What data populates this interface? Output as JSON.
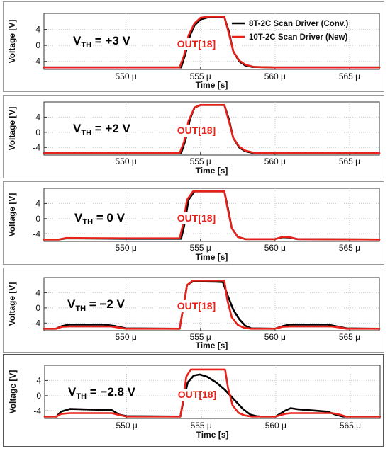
{
  "chart_data": [
    {
      "type": "line",
      "condition": {
        "prefix": "V",
        "sub": "TH",
        "suffix": " = +3 V"
      },
      "signal_label": "OUT[18]",
      "xlabel": "Time [s]",
      "ylabel": "Voltage [V]",
      "xlim": [
        544.5,
        567.0
      ],
      "ylim": [
        -6.0,
        8.0
      ],
      "x_ticks": [
        550,
        555,
        560,
        565
      ],
      "x_tick_labels": [
        "550 μ",
        "555 μ",
        "560 μ",
        "565 μ"
      ],
      "y_ticks": [
        4,
        0,
        -4
      ],
      "y_tick_labels": [
        "4",
        "0",
        "-4"
      ],
      "legend": {
        "position": "top-right",
        "entries": [
          {
            "name": "8T-2C Scan Driver (Conv.)",
            "color": "#000000"
          },
          {
            "name": "10T-2C Scan Driver (New)",
            "color": "#e8211b"
          }
        ]
      },
      "series": [
        {
          "name": "8T-2C Scan Driver (Conv.)",
          "color": "#000000",
          "x": [
            544.5,
            553.7,
            554.0,
            554.3,
            554.6,
            555.0,
            555.5,
            556.0,
            556.6,
            556.9,
            557.2,
            557.6,
            558.0,
            558.5,
            560.0,
            567.0
          ],
          "y": [
            -5.5,
            -5.5,
            -2.0,
            2.5,
            5.0,
            6.5,
            7.0,
            7.1,
            7.1,
            3.5,
            -1.5,
            -4.0,
            -5.0,
            -5.4,
            -5.5,
            -5.5
          ]
        },
        {
          "name": "10T-2C Scan Driver (New)",
          "color": "#e8211b",
          "x": [
            544.5,
            553.6,
            553.9,
            554.2,
            554.6,
            555.0,
            555.5,
            556.0,
            556.6,
            556.9,
            557.2,
            557.6,
            558.0,
            558.6,
            560.0,
            567.0
          ],
          "y": [
            -5.5,
            -5.5,
            -2.5,
            2.5,
            5.5,
            6.9,
            7.2,
            7.2,
            7.2,
            3.0,
            -1.5,
            -3.8,
            -4.8,
            -5.4,
            -5.5,
            -5.5
          ]
        }
      ]
    },
    {
      "type": "line",
      "condition": {
        "prefix": "V",
        "sub": "TH",
        "suffix": " = +2 V"
      },
      "signal_label": "OUT[18]",
      "xlabel": "Time [s]",
      "ylabel": "Voltage [V]",
      "xlim": [
        544.5,
        567.0
      ],
      "ylim": [
        -6.0,
        8.0
      ],
      "x_ticks": [
        550,
        555,
        560,
        565
      ],
      "x_tick_labels": [
        "550 μ",
        "555 μ",
        "560 μ",
        "565 μ"
      ],
      "y_ticks": [
        4,
        0,
        -4
      ],
      "y_tick_labels": [
        "4",
        "0",
        "-4"
      ],
      "series": [
        {
          "name": "8T-2C Scan Driver (Conv.)",
          "color": "#000000",
          "x": [
            544.5,
            553.7,
            554.0,
            554.3,
            554.6,
            555.0,
            556.6,
            556.9,
            557.2,
            557.6,
            558.0,
            558.5,
            560.0,
            567.0
          ],
          "y": [
            -5.5,
            -5.5,
            -2.0,
            3.5,
            6.5,
            7.2,
            7.2,
            3.5,
            -1.5,
            -4.0,
            -5.0,
            -5.4,
            -5.5,
            -5.5
          ]
        },
        {
          "name": "10T-2C Scan Driver (New)",
          "color": "#e8211b",
          "x": [
            544.5,
            553.6,
            553.9,
            554.2,
            554.6,
            555.0,
            556.6,
            556.9,
            557.2,
            557.6,
            558.0,
            558.6,
            560.0,
            567.0
          ],
          "y": [
            -5.5,
            -5.5,
            -2.5,
            3.0,
            6.5,
            7.2,
            7.2,
            3.0,
            -1.5,
            -3.8,
            -4.8,
            -5.4,
            -5.5,
            -5.5
          ]
        }
      ]
    },
    {
      "type": "line",
      "condition": {
        "prefix": "V",
        "sub": "TH",
        "suffix": " = 0 V"
      },
      "signal_label": "OUT[18]",
      "xlabel": "Time [s]",
      "ylabel": "Voltage [V]",
      "xlim": [
        544.5,
        567.0
      ],
      "ylim": [
        -6.0,
        8.0
      ],
      "x_ticks": [
        550,
        555,
        560,
        565
      ],
      "x_tick_labels": [
        "550 μ",
        "555 μ",
        "560 μ",
        "565 μ"
      ],
      "y_ticks": [
        4,
        0,
        -4
      ],
      "y_tick_labels": [
        "4",
        "0",
        "-4"
      ],
      "series": [
        {
          "name": "8T-2C Scan Driver (Conv.)",
          "color": "#000000",
          "x": [
            544.5,
            545.5,
            546.0,
            550.0,
            553.7,
            553.9,
            554.2,
            554.6,
            556.6,
            556.8,
            557.1,
            557.5,
            558.0,
            560.0,
            560.5,
            561.0,
            561.5,
            567.0
          ],
          "y": [
            -5.5,
            -5.5,
            -5.2,
            -5.3,
            -5.3,
            -2.0,
            5.0,
            7.2,
            7.2,
            3.5,
            -2.5,
            -4.8,
            -5.4,
            -5.4,
            -4.9,
            -5.0,
            -5.4,
            -5.5
          ]
        },
        {
          "name": "10T-2C Scan Driver (New)",
          "color": "#e8211b",
          "x": [
            544.5,
            545.5,
            546.0,
            550.0,
            553.6,
            553.8,
            554.1,
            554.5,
            556.6,
            556.8,
            557.1,
            557.5,
            558.0,
            560.0,
            560.5,
            561.0,
            561.5,
            567.0
          ],
          "y": [
            -5.5,
            -5.5,
            -5.1,
            -5.2,
            -5.2,
            -2.0,
            5.0,
            7.2,
            7.2,
            3.0,
            -2.5,
            -4.8,
            -5.4,
            -5.4,
            -4.8,
            -4.9,
            -5.4,
            -5.5
          ]
        }
      ]
    },
    {
      "type": "line",
      "condition": {
        "prefix": "V",
        "sub": "TH",
        "suffix": " = −2 V"
      },
      "signal_label": "OUT[18]",
      "xlabel": "Time [s]",
      "ylabel": "Voltage [V]",
      "xlim": [
        544.5,
        567.0
      ],
      "ylim": [
        -6.0,
        8.0
      ],
      "x_ticks": [
        550,
        555,
        560,
        565
      ],
      "x_tick_labels": [
        "550 μ",
        "555 μ",
        "560 μ",
        "565 μ"
      ],
      "y_ticks": [
        4,
        0,
        -4
      ],
      "y_tick_labels": [
        "4",
        "0",
        "-4"
      ],
      "series": [
        {
          "name": "8T-2C Scan Driver (Conv.)",
          "color": "#000000",
          "x": [
            544.5,
            545.3,
            545.7,
            546.2,
            548.5,
            549.3,
            550.0,
            553.6,
            553.8,
            554.1,
            554.5,
            556.0,
            556.5,
            556.8,
            557.2,
            557.6,
            558.0,
            558.4,
            560.0,
            560.5,
            561.0,
            563.5,
            564.2,
            564.8,
            567.0
          ],
          "y": [
            -5.5,
            -5.5,
            -4.8,
            -4.4,
            -4.4,
            -4.8,
            -5.4,
            -5.5,
            -1.0,
            6.0,
            7.0,
            6.9,
            6.8,
            3.5,
            -0.5,
            -3.0,
            -4.7,
            -5.4,
            -5.5,
            -4.8,
            -4.4,
            -4.4,
            -4.9,
            -5.4,
            -5.5
          ]
        },
        {
          "name": "10T-2C Scan Driver (New)",
          "color": "#e8211b",
          "x": [
            544.5,
            545.3,
            545.7,
            546.2,
            549.0,
            549.5,
            550.0,
            553.6,
            553.8,
            554.1,
            554.5,
            556.6,
            556.8,
            557.1,
            557.5,
            557.9,
            558.4,
            560.0,
            560.5,
            561.0,
            563.8,
            564.4,
            564.8,
            567.0
          ],
          "y": [
            -5.5,
            -5.5,
            -5.0,
            -4.9,
            -4.9,
            -5.2,
            -5.5,
            -5.5,
            -1.0,
            6.0,
            7.2,
            7.2,
            2.0,
            -2.5,
            -4.5,
            -5.2,
            -5.5,
            -5.5,
            -5.0,
            -4.9,
            -4.9,
            -5.2,
            -5.5,
            -5.5
          ]
        }
      ]
    },
    {
      "type": "line",
      "condition": {
        "prefix": "V",
        "sub": "TH",
        "suffix": " = −2.8 V"
      },
      "signal_label": "OUT[18]",
      "xlabel": "Time [s]",
      "ylabel": "Voltage [V]",
      "xlim": [
        544.5,
        567.0
      ],
      "ylim": [
        -6.0,
        8.0
      ],
      "x_ticks": [
        550,
        555,
        560,
        565
      ],
      "x_tick_labels": [
        "550 μ",
        "555 μ",
        "560 μ",
        "565 μ"
      ],
      "y_ticks": [
        4,
        0,
        -4
      ],
      "y_tick_labels": [
        "4",
        "0",
        "-4"
      ],
      "series": [
        {
          "name": "8T-2C Scan Driver (Conv.)",
          "color": "#000000",
          "x": [
            544.5,
            545.3,
            545.6,
            546.2,
            547.0,
            549.0,
            549.5,
            550.0,
            553.6,
            553.8,
            554.1,
            554.5,
            554.9,
            555.4,
            556.0,
            556.6,
            557.2,
            557.8,
            558.3,
            558.7,
            559.0,
            560.0,
            560.6,
            561.0,
            561.5,
            563.5,
            564.0,
            564.5,
            567.0
          ],
          "y": [
            -5.5,
            -5.5,
            -4.2,
            -3.5,
            -3.6,
            -3.8,
            -5.0,
            -5.4,
            -5.5,
            -1.5,
            3.5,
            5.3,
            5.6,
            5.0,
            3.5,
            1.5,
            -1.0,
            -3.5,
            -5.0,
            -5.4,
            -5.5,
            -5.5,
            -4.0,
            -3.3,
            -3.6,
            -4.2,
            -5.0,
            -5.5,
            -5.5
          ]
        },
        {
          "name": "10T-2C Scan Driver (New)",
          "color": "#e8211b",
          "x": [
            544.5,
            545.3,
            545.6,
            546.2,
            549.0,
            549.4,
            550.0,
            553.6,
            553.8,
            554.0,
            554.3,
            556.6,
            556.8,
            557.1,
            557.5,
            557.9,
            558.4,
            560.0,
            560.6,
            561.0,
            563.8,
            564.3,
            564.7,
            567.0
          ],
          "y": [
            -5.5,
            -5.5,
            -4.8,
            -4.6,
            -4.6,
            -5.0,
            -5.5,
            -5.5,
            -1.0,
            5.0,
            6.9,
            6.9,
            2.0,
            -2.5,
            -4.5,
            -5.2,
            -5.5,
            -5.5,
            -4.8,
            -4.6,
            -4.6,
            -5.0,
            -5.5,
            -5.5
          ]
        }
      ]
    }
  ]
}
